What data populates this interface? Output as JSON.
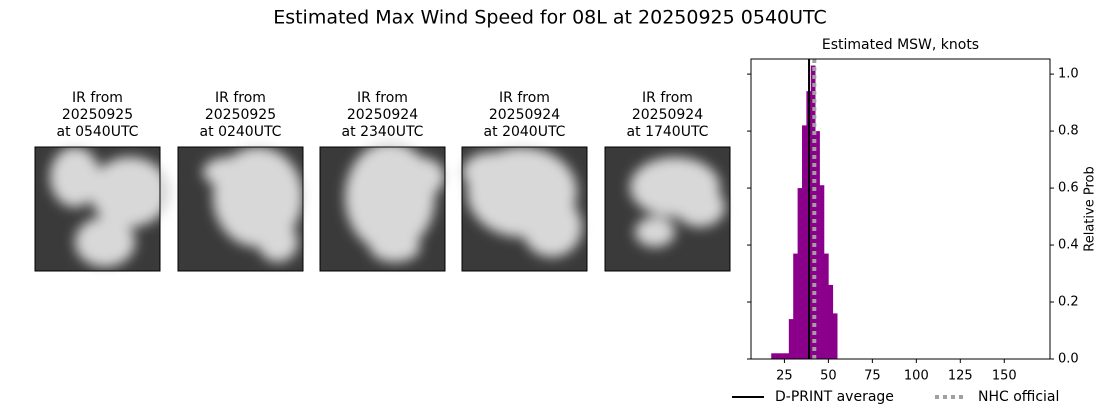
{
  "title": "Estimated Max Wind Speed for 08L at 20250925 0540UTC",
  "panels": [
    {
      "title_lines": [
        "IR from",
        "20250925",
        "at 0540UTC"
      ]
    },
    {
      "title_lines": [
        "IR from",
        "20250925",
        "at 0240UTC"
      ]
    },
    {
      "title_lines": [
        "IR from",
        "20250924",
        "at 2340UTC"
      ]
    },
    {
      "title_lines": [
        "IR from",
        "20250924",
        "at 2040UTC"
      ]
    },
    {
      "title_lines": [
        "IR from",
        "20250924",
        "at 1740UTC"
      ]
    }
  ],
  "chart_data": {
    "type": "histogram",
    "title": "Estimated MSW, knots",
    "y_label": "Relative Prob",
    "bins": [
      17.5,
      20,
      22.5,
      25,
      27.5,
      30,
      32.5,
      35,
      37.5,
      40,
      42.5,
      45,
      47.5,
      50,
      52.5,
      55
    ],
    "values": [
      0.02,
      0.02,
      0.02,
      0.02,
      0.14,
      0.37,
      0.6,
      0.82,
      0.94,
      1.03,
      0.8,
      0.61,
      0.37,
      0.26,
      0.16
    ],
    "color": "#8b008b",
    "xlim": [
      6,
      176
    ],
    "xticks": [
      25,
      50,
      75,
      100,
      125,
      150
    ],
    "ylim": [
      0,
      1.053
    ],
    "yticks": [
      {
        "value": 0,
        "label": "0.0"
      },
      {
        "value": 0.2,
        "label": "0.2"
      },
      {
        "value": 0.4,
        "label": "0.4"
      },
      {
        "value": 0.6,
        "label": "0.6"
      },
      {
        "value": 0.8,
        "label": "0.8"
      },
      {
        "value": 1,
        "label": "1.0"
      }
    ],
    "reference_lines": [
      {
        "name": "D-PRINT average",
        "value": 39,
        "color": "#000000",
        "dashed": false
      },
      {
        "name": "NHC official",
        "value": 42,
        "color": "#a0a0a0",
        "dashed": true
      }
    ]
  }
}
